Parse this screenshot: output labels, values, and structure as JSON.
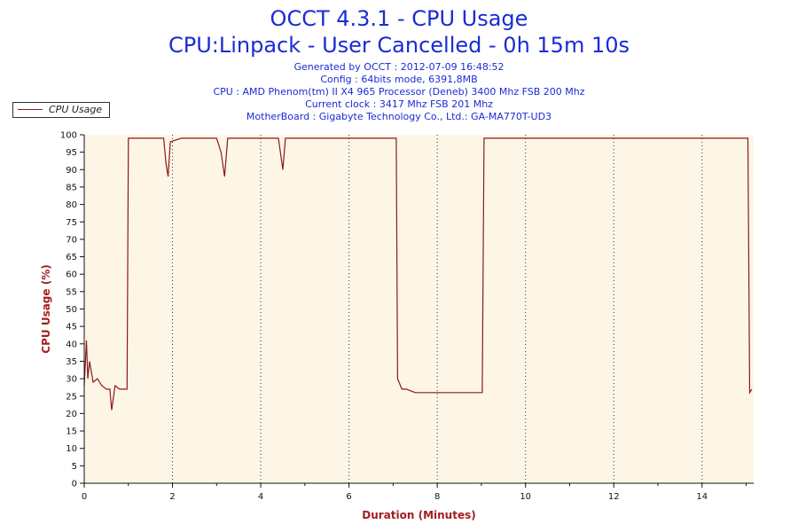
{
  "header": {
    "title": "OCCT 4.3.1 - CPU Usage",
    "subtitle": "CPU:Linpack - User Cancelled - 0h 15m 10s",
    "info_lines": [
      "Generated by OCCT : 2012-07-09 16:48:52",
      "Config : 64bits mode, 6391,8MB",
      "CPU : AMD Phenom(tm) II X4 965 Processor (Deneb) 3400 Mhz FSB 200 Mhz",
      "Current clock : 3417 Mhz FSB 201 Mhz",
      "MotherBoard : Gigabyte Technology Co., Ltd.: GA-MA770T-UD3"
    ]
  },
  "legend": {
    "label": "CPU Usage"
  },
  "colors": {
    "line": "#8b1a1a",
    "plot_bg": "#fdf6e6",
    "title": "#1a2bd6",
    "axis_label": "#a31e1e"
  },
  "chart_data": {
    "type": "line",
    "title": "OCCT 4.3.1 - CPU Usage",
    "xlabel": "Duration (Minutes)",
    "ylabel": "CPU Usage (%)",
    "xlim": [
      0,
      15.17
    ],
    "ylim": [
      0,
      100
    ],
    "x_ticks": [
      0,
      2,
      4,
      6,
      8,
      10,
      12,
      14
    ],
    "y_ticks": [
      0,
      5,
      10,
      15,
      20,
      25,
      30,
      35,
      40,
      45,
      50,
      55,
      60,
      65,
      70,
      75,
      80,
      85,
      90,
      95,
      100
    ],
    "grid": "vertical dotted at x ticks",
    "legend_position": "top-left",
    "series": [
      {
        "name": "CPU Usage",
        "x": [
          0,
          0.05,
          0.08,
          0.12,
          0.2,
          0.3,
          0.4,
          0.5,
          0.58,
          0.62,
          0.7,
          0.8,
          0.9,
          0.97,
          1.0,
          1.2,
          1.5,
          1.8,
          1.85,
          1.9,
          1.95,
          2.2,
          2.5,
          3.0,
          3.1,
          3.18,
          3.25,
          3.5,
          4.0,
          4.4,
          4.5,
          4.56,
          5.0,
          6.0,
          7.0,
          7.07,
          7.1,
          7.2,
          7.3,
          7.5,
          7.8,
          8.0,
          8.3,
          8.6,
          8.9,
          9.02,
          9.06,
          9.1,
          9.5,
          10.0,
          11.0,
          12.0,
          12.5,
          13.0,
          13.5,
          14.0,
          14.5,
          15.0,
          15.04,
          15.08,
          15.13
        ],
        "y": [
          28,
          41,
          30,
          35,
          29,
          30,
          28,
          27,
          27,
          21,
          28,
          27,
          27,
          27,
          99,
          99,
          99,
          99,
          92,
          88,
          98,
          99,
          99,
          99,
          95,
          88,
          99,
          99,
          99,
          99,
          90,
          99,
          99,
          99,
          99,
          99,
          30,
          27,
          27,
          26,
          26,
          26,
          26,
          26,
          26,
          26,
          99,
          99,
          99,
          99,
          99,
          99,
          99,
          99,
          99,
          99,
          99,
          99,
          99,
          26,
          27
        ]
      }
    ]
  }
}
